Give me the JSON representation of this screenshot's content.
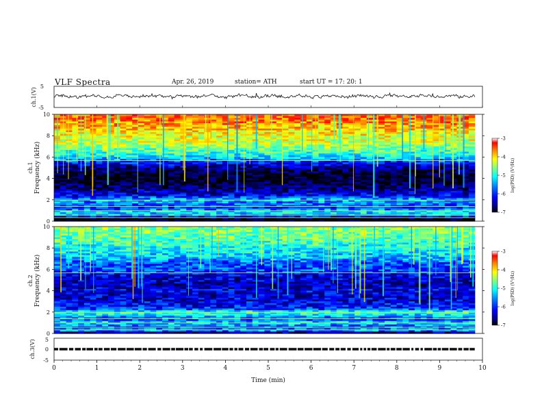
{
  "header": {
    "title": "VLF  Spectra",
    "date": "Apr. 26, 2019",
    "station": "station= ATH",
    "start": "start  UT  =    17: 20: 1"
  },
  "colors": {
    "background": "#ffffff",
    "axis": "#111111",
    "trace": "#111111",
    "colormap": [
      "#000000",
      "#00007f",
      "#0000ff",
      "#0080ff",
      "#00ffff",
      "#80ff80",
      "#ffff00",
      "#ff8000",
      "#ff0000",
      "#ffffff"
    ]
  },
  "chart_data": [
    {
      "type": "line",
      "panel": "ch1-waveform",
      "ylabel": "ch.1(V)",
      "yticks": [
        "5",
        "-5"
      ],
      "ylim": [
        -5,
        5
      ],
      "xlim": [
        0,
        10
      ],
      "x_end": 9.82,
      "mean": 0.3,
      "note": "noisy waveform, amplitude about ±1 V with spikes"
    },
    {
      "type": "heatmap",
      "panel": "ch1-spectrogram",
      "ylabel": "Frequency (kHz)",
      "channel_label": "ch.1",
      "yticks": [
        "0",
        "2",
        "4",
        "6",
        "8",
        "10"
      ],
      "ylim": [
        0,
        10
      ],
      "xlim": [
        0,
        10
      ],
      "x_end": 9.82,
      "colorbar": {
        "label": "log(PSD) (V²/Hz)",
        "ticks": [
          "-3",
          "-4",
          "-5",
          "-6",
          "-7"
        ],
        "range": [
          -7,
          -3
        ]
      },
      "profile": [
        [
          0.0,
          -7.0
        ],
        [
          0.3,
          -6.8
        ],
        [
          0.5,
          -5.6
        ],
        [
          0.9,
          -5.2
        ],
        [
          1.2,
          -6.0
        ],
        [
          1.5,
          -5.8
        ],
        [
          2.0,
          -5.5
        ],
        [
          2.5,
          -6.3
        ],
        [
          3.0,
          -6.5
        ],
        [
          3.5,
          -6.8
        ],
        [
          4.0,
          -6.9
        ],
        [
          4.5,
          -6.8
        ],
        [
          5.0,
          -6.5
        ],
        [
          5.5,
          -6.0
        ],
        [
          6.0,
          -5.3
        ],
        [
          6.5,
          -5.0
        ],
        [
          7.0,
          -4.7
        ],
        [
          7.5,
          -4.5
        ],
        [
          8.0,
          -4.4
        ],
        [
          8.5,
          -4.2
        ],
        [
          9.0,
          -4.0
        ],
        [
          9.5,
          -3.8
        ],
        [
          10.0,
          -3.7
        ]
      ]
    },
    {
      "type": "heatmap",
      "panel": "ch2-spectrogram",
      "ylabel": "Frequency (kHz)",
      "channel_label": "ch.2",
      "yticks": [
        "0",
        "2",
        "4",
        "6",
        "8",
        "10"
      ],
      "ylim": [
        0,
        10
      ],
      "xlim": [
        0,
        10
      ],
      "x_end": 9.82,
      "colorbar": {
        "label": "log(PSD) (V²/Hz)",
        "ticks": [
          "-3",
          "-4",
          "-5",
          "-6",
          "-7"
        ],
        "range": [
          -7,
          -3
        ]
      },
      "profile": [
        [
          0.0,
          -6.8
        ],
        [
          0.3,
          -5.5
        ],
        [
          0.6,
          -5.8
        ],
        [
          1.0,
          -5.3
        ],
        [
          1.3,
          -5.9
        ],
        [
          1.5,
          -5.6
        ],
        [
          2.0,
          -5.0
        ],
        [
          2.3,
          -6.0
        ],
        [
          3.0,
          -6.2
        ],
        [
          3.5,
          -6.3
        ],
        [
          4.0,
          -6.2
        ],
        [
          4.5,
          -6.4
        ],
        [
          5.0,
          -6.3
        ],
        [
          5.5,
          -6.2
        ],
        [
          6.0,
          -5.8
        ],
        [
          6.5,
          -5.9
        ],
        [
          7.0,
          -5.5
        ],
        [
          7.5,
          -5.3
        ],
        [
          8.0,
          -5.2
        ],
        [
          8.5,
          -5.0
        ],
        [
          9.0,
          -4.9
        ],
        [
          9.5,
          -4.8
        ],
        [
          10.0,
          -4.7
        ]
      ]
    },
    {
      "type": "line",
      "panel": "ch3-waveform",
      "ylabel": "ch.3(V)",
      "yticks": [
        "5",
        "0",
        "-5"
      ],
      "ylim": [
        -5,
        5
      ],
      "xlim": [
        0,
        10
      ],
      "x_end": 9.82,
      "level": 0,
      "xlabel": "Time  (min)",
      "xticks": [
        "0",
        "1",
        "2",
        "3",
        "4",
        "5",
        "6",
        "7",
        "8",
        "9",
        "10"
      ]
    }
  ]
}
